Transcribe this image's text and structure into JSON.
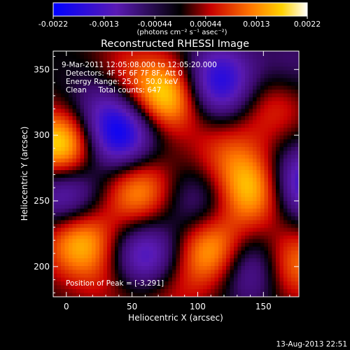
{
  "colorbar": {
    "ticks": [
      "-0.0022",
      "-0.0013",
      "-0.00044",
      "0.00044",
      "0.0013",
      "0.0022"
    ],
    "unit_label": "(photons cm⁻² s⁻¹ asec⁻²)"
  },
  "chart_data": {
    "type": "heatmap",
    "title": "Reconstructed RHESSI Image",
    "xlabel": "Heliocentric X (arcsec)",
    "ylabel": "Heliocentric Y (arcsec)",
    "xlim": [
      -10,
      177
    ],
    "ylim": [
      177,
      364
    ],
    "xticks": [
      0,
      50,
      100,
      150
    ],
    "yticks": [
      200,
      250,
      300,
      350
    ],
    "value_range": [
      -0.0022,
      0.0022
    ],
    "colormap": "blue-purple-black-red-yellow-white",
    "bright_sources": [
      {
        "x": -3,
        "y": 291,
        "value": 0.0022
      },
      {
        "x": 77,
        "y": 330,
        "value": 0.002
      },
      {
        "x": 143,
        "y": 258,
        "value": 0.0018
      },
      {
        "x": 55,
        "y": 258,
        "value": 0.0015
      },
      {
        "x": 10,
        "y": 220,
        "value": 0.0017
      },
      {
        "x": 112,
        "y": 212,
        "value": 0.0018
      },
      {
        "x": 170,
        "y": 202,
        "value": 0.0015
      },
      {
        "x": 158,
        "y": 324,
        "value": 0.0009
      },
      {
        "x": 120,
        "y": 286,
        "value": 0.0008
      },
      {
        "x": 40,
        "y": 345,
        "value": 0.0009
      },
      {
        "x": 75,
        "y": 185,
        "value": 0.0008
      },
      {
        "x": 35,
        "y": 190,
        "value": 0.0006
      }
    ],
    "dark_sources": [
      {
        "x": 40,
        "y": 300,
        "value": -0.0022
      },
      {
        "x": 115,
        "y": 340,
        "value": -0.002
      },
      {
        "x": 60,
        "y": 205,
        "value": -0.0019
      },
      {
        "x": 142,
        "y": 200,
        "value": -0.0016
      },
      {
        "x": 0,
        "y": 255,
        "value": -0.0016
      },
      {
        "x": 178,
        "y": 263,
        "value": -0.0018
      },
      {
        "x": 100,
        "y": 250,
        "value": -0.0009
      },
      {
        "x": 28,
        "y": 330,
        "value": -0.0009
      },
      {
        "x": 170,
        "y": 350,
        "value": -0.0006
      }
    ],
    "annotations": [
      "9-Mar-2011 12:05:08.000 to 12:05:20.000",
      "Detectors: 4F 5F 6F 7F 8F, Att 0",
      "Energy Range: 25.0 - 50.0 keV",
      "Clean     Total counts: 647",
      "Position of Peak = [-3,291]"
    ]
  },
  "footer": {
    "timestamp": "13-Aug-2013 22:51"
  }
}
